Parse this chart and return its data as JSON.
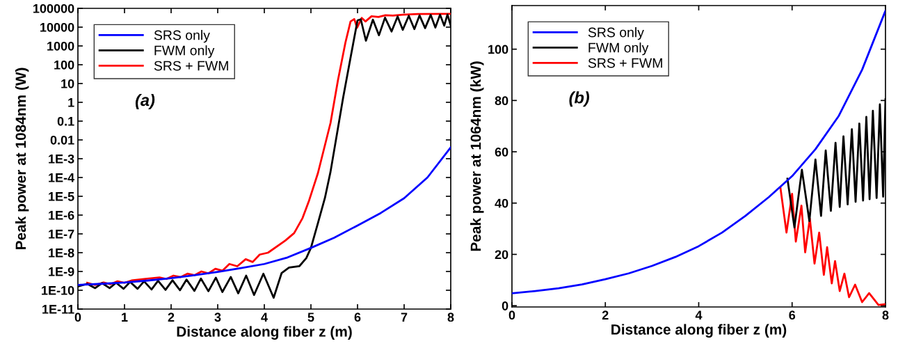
{
  "chart_data": [
    {
      "type": "line",
      "xlabel": "Distance along fiber z (m)",
      "ylabel": "Peak power at 1084nm (W)",
      "log": "y",
      "grid": false,
      "legend": "top left",
      "annotations": [
        "(a)"
      ],
      "xlim": [
        0,
        8
      ],
      "xticks": [
        0,
        1,
        2,
        3,
        4,
        5,
        6,
        7,
        8
      ],
      "ylim": [
        1e-11,
        100000
      ],
      "yticks": [
        {
          "value": 1e-11,
          "label": "1E-11"
        },
        {
          "value": 1e-10,
          "label": "1E-10"
        },
        {
          "value": 1e-09,
          "label": "1E-9"
        },
        {
          "value": 1e-08,
          "label": "1E-8"
        },
        {
          "value": 1e-07,
          "label": "1E-7"
        },
        {
          "value": 1e-06,
          "label": "1E-6"
        },
        {
          "value": 1e-05,
          "label": "1E-5"
        },
        {
          "value": 0.0001,
          "label": "1E-4"
        },
        {
          "value": 0.001,
          "label": "1E-3"
        },
        0.01,
        0.1,
        1,
        10,
        100,
        1000,
        10000,
        100000
      ],
      "series": [
        {
          "name": "SRS only",
          "color": "#0000ff",
          "x": [
            0,
            0.5,
            1,
            1.5,
            2,
            2.5,
            3,
            3.5,
            4,
            4.5,
            5,
            5.5,
            6,
            6.5,
            7,
            7.5,
            8
          ],
          "values": [
            1.9e-10,
            2.2e-10,
            2.6e-10,
            3.3e-10,
            4.4e-10,
            6.3e-10,
            9.5e-10,
            1.5e-09,
            2.5e-09,
            5.6e-09,
            1.8e-08,
            6.3e-08,
            2.8e-07,
            1.3e-06,
            7.9e-06,
            0.0001,
            0.004
          ]
        },
        {
          "name": "FWM only",
          "color": "#000000",
          "x": [
            0,
            0.2,
            0.37,
            0.52,
            0.68,
            0.82,
            0.98,
            1.12,
            1.28,
            1.42,
            1.58,
            1.72,
            1.88,
            2.03,
            2.19,
            2.33,
            2.5,
            2.64,
            2.8,
            2.96,
            3.1,
            3.28,
            3.44,
            3.61,
            3.78,
            3.98,
            4.2,
            4.37,
            4.53,
            4.75,
            4.9,
            5.0,
            5.15,
            5.3,
            5.42,
            5.69,
            5.86,
            6.0,
            6.07,
            6.18,
            6.33,
            6.46,
            6.59,
            6.73,
            6.86,
            6.97,
            7.1,
            7.22,
            7.33,
            7.45,
            7.57,
            7.67,
            7.77,
            7.86,
            7.93,
            8.0
          ],
          "values": [
            1.6e-10,
            2.2e-10,
            1.3e-10,
            2.4e-10,
            1.3e-10,
            2.5e-10,
            1.2e-10,
            2.8e-10,
            1.2e-10,
            3e-10,
            1.1e-10,
            3.2e-10,
            1.05e-10,
            3.4e-10,
            1e-10,
            3.7e-10,
            9.3e-11,
            4.2e-10,
            8.9e-11,
            4.7e-10,
            8.1e-11,
            5.1e-10,
            6.9e-11,
            6e-10,
            5.6e-11,
            7.6e-10,
            4e-11,
            8.1e-10,
            1.6e-09,
            1.9e-09,
            5.1e-09,
            1.8e-08,
            3.7e-07,
            8.1e-06,
            0.0002,
            1.7,
            320,
            23000,
            26000,
            1900,
            25000,
            3700,
            32000,
            5900,
            37000,
            7200,
            40000,
            7900,
            42000,
            8900,
            45000,
            9500,
            46000,
            12000,
            47000,
            12000
          ]
        },
        {
          "name": "SRS + FWM",
          "color": "#ff0000",
          "x": [
            0.2,
            0.37,
            0.55,
            0.7,
            0.85,
            1.0,
            1.15,
            1.45,
            1.75,
            1.9,
            2.05,
            2.2,
            2.35,
            2.5,
            2.65,
            2.8,
            2.95,
            3.1,
            3.25,
            3.42,
            3.6,
            3.75,
            3.9,
            4.08,
            4.45,
            4.64,
            4.82,
            4.96,
            5.15,
            5.42,
            5.58,
            5.74,
            5.85,
            5.93,
            5.99,
            6.09,
            6.17,
            6.3,
            6.45,
            6.6,
            6.76,
            6.97,
            7.29,
            8.0
          ],
          "values": [
            2.5e-10,
            1.9e-10,
            2.6e-10,
            2.1e-10,
            3e-10,
            2.5e-10,
            3.3e-10,
            4e-10,
            4.8e-10,
            4e-10,
            6e-10,
            5e-10,
            7.6e-10,
            6.3e-10,
            1e-09,
            7.9e-10,
            1.4e-09,
            1.1e-09,
            2.5e-09,
            1.9e-09,
            4.5e-09,
            3.2e-09,
            7.9e-09,
            1e-08,
            4.4e-08,
            1.1e-07,
            6.9e-07,
            5.9e-06,
            0.00017,
            0.079,
            15,
            1500,
            20000,
            27000,
            9300,
            31000,
            20000,
            38000,
            35000,
            43000,
            41000,
            46000,
            50000,
            51000
          ]
        }
      ]
    },
    {
      "type": "line",
      "xlabel": "Distance along fiber z (m)",
      "ylabel": "Peak power at 1064nm (kW)",
      "grid": false,
      "legend": "top left",
      "annotations": [
        "(b)"
      ],
      "xlim": [
        0,
        8
      ],
      "xticks": [
        0,
        2,
        4,
        6,
        8
      ],
      "ylim": [
        -0.5,
        117
      ],
      "yticks": [
        0,
        20,
        40,
        60,
        80,
        100
      ],
      "series": [
        {
          "name": "SRS only",
          "color": "#0000ff",
          "x": [
            0,
            0.5,
            1,
            1.5,
            2,
            2.5,
            3,
            3.5,
            4,
            4.5,
            5,
            5.5,
            6,
            6.5,
            7,
            7.5,
            8
          ],
          "values": [
            4.8,
            5.7,
            6.8,
            8.3,
            10.3,
            12.6,
            15.5,
            19,
            23.2,
            28.5,
            35,
            42.3,
            50.5,
            61,
            74,
            92,
            115
          ]
        },
        {
          "name": "FWM only",
          "color": "#000000",
          "x": [
            5.9,
            6.05,
            6.21,
            6.37,
            6.5,
            6.62,
            6.72,
            6.83,
            6.93,
            7.02,
            7.1,
            7.19,
            7.28,
            7.36,
            7.44,
            7.52,
            7.59,
            7.66,
            7.73,
            7.81,
            7.88,
            7.95,
            8.0
          ],
          "values": [
            49.5,
            30.5,
            53,
            33,
            57,
            35,
            60.5,
            37,
            63.5,
            38.5,
            66,
            39.5,
            68.8,
            40.5,
            71,
            41,
            73.6,
            41.5,
            76,
            42,
            78.5,
            42.5,
            80.5
          ]
        },
        {
          "name": "SRS + FWM",
          "color": "#ff0000",
          "x": [
            5.75,
            5.88,
            6.0,
            6.08,
            6.2,
            6.28,
            6.38,
            6.48,
            6.58,
            6.68,
            6.75,
            6.85,
            6.92,
            7.02,
            7.12,
            7.22,
            7.35,
            7.5,
            7.65,
            7.85,
            8.0
          ],
          "values": [
            46,
            28.5,
            43.6,
            25,
            39,
            20.8,
            34,
            16.4,
            28.5,
            12,
            22.8,
            8.7,
            17.4,
            5.7,
            12.5,
            3.3,
            8.2,
            1.4,
            4.9,
            0.3,
            0.6
          ]
        }
      ]
    }
  ]
}
